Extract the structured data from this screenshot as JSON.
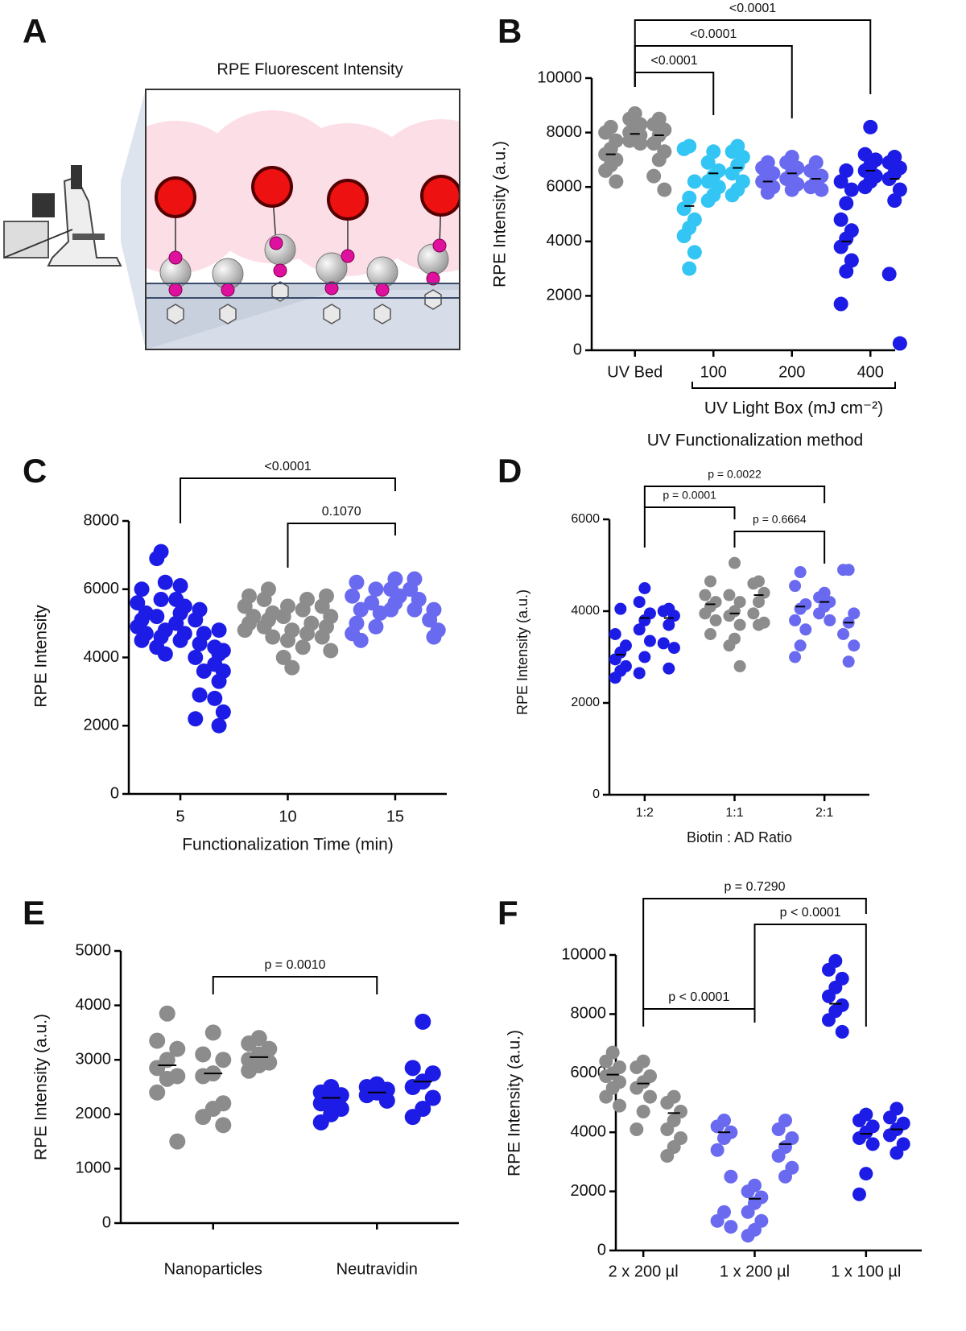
{
  "panel_a": {
    "panel": "A",
    "title": "RPE Fluorescent Intensity"
  },
  "chart_data": [
    {
      "type": "dotplot",
      "panel": "B",
      "ylabel": "RPE Intensity (a.u.)",
      "ylim": [
        0,
        10000
      ],
      "yticks": [
        0,
        2000,
        4000,
        6000,
        8000,
        10000
      ],
      "categories": [
        "UV Bed",
        "100",
        "200",
        "400"
      ],
      "x_group_label": "UV Light Box (mJ cm⁻²)",
      "xlabel": "UV Functionalization method",
      "groups": [
        {
          "color": "#8c8c8c",
          "columns": [
            {
              "values": [
                8200,
                8000,
                7700,
                7400,
                7200,
                7000,
                6800,
                6600,
                6200
              ],
              "mean": 7200
            },
            {
              "values": [
                8700,
                8500,
                8300,
                8100,
                8000,
                7900,
                7800,
                7700,
                7600
              ],
              "mean": 7950
            },
            {
              "values": [
                8500,
                8300,
                8100,
                7900,
                7600,
                7300,
                7000,
                6400,
                5900
              ],
              "mean": 7900
            }
          ]
        },
        {
          "color": "#33c5f3",
          "columns": [
            {
              "values": [
                7500,
                7400,
                6200,
                5600,
                5200,
                4800,
                4500,
                4200,
                3600,
                3000
              ],
              "mean": 5300
            },
            {
              "values": [
                7300,
                6900,
                6600,
                6400,
                6200,
                6000,
                5700,
                5500
              ],
              "mean": 6500
            },
            {
              "values": [
                7500,
                7300,
                7100,
                6800,
                6500,
                6200,
                5900,
                5700
              ],
              "mean": 6700
            }
          ]
        },
        {
          "color": "#6a6af0",
          "columns": [
            {
              "values": [
                6900,
                6700,
                6500,
                6300,
                6200,
                6000,
                5800
              ],
              "mean": 6200
            },
            {
              "values": [
                7100,
                6900,
                6700,
                6500,
                6300,
                6100,
                5900
              ],
              "mean": 6500
            },
            {
              "values": [
                6900,
                6600,
                6400,
                6200,
                6000,
                5900
              ],
              "mean": 6300
            }
          ]
        },
        {
          "color": "#1c1ce6",
          "columns": [
            {
              "values": [
                6600,
                6200,
                5900,
                5400,
                4800,
                4400,
                4100,
                3800,
                3300,
                2900,
                1700
              ],
              "mean": 4000
            },
            {
              "values": [
                8200,
                7200,
                7000,
                6800,
                6600,
                6400,
                6200,
                6000
              ],
              "mean": 6600
            },
            {
              "values": [
                7100,
                6900,
                6700,
                6500,
                6300,
                5900,
                5500,
                2800,
                250
              ],
              "mean": 6300
            }
          ]
        }
      ],
      "comparisons": [
        {
          "from": 0,
          "to": 1,
          "label": "<0.0001"
        },
        {
          "from": 0,
          "to": 2,
          "label": "<0.0001"
        },
        {
          "from": 0,
          "to": 3,
          "label": "<0.0001"
        }
      ]
    },
    {
      "type": "dotplot",
      "panel": "C",
      "ylabel": "RPE Intensity",
      "xlabel": "Functionalization Time (min)",
      "ylim": [
        0,
        8000
      ],
      "yticks": [
        0,
        2000,
        4000,
        6000,
        8000
      ],
      "x": [
        5,
        10,
        15
      ],
      "xlim": [
        2.6,
        17.4
      ],
      "xticks": [
        5,
        10,
        15
      ],
      "groups": [
        {
          "color": "#1c1ce6",
          "columns": [
            {
              "values": [
                6000,
                5600,
                5300,
                5100,
                4900,
                4700,
                4500
              ]
            },
            {
              "values": [
                7100,
                6900,
                6200,
                5700,
                5200,
                4800,
                4600,
                4300,
                4100
              ]
            },
            {
              "values": [
                6100,
                5700,
                5500,
                5300,
                5000,
                4700,
                4500
              ]
            },
            {
              "values": [
                5400,
                5100,
                4700,
                4400,
                4000,
                3600,
                2900,
                2200
              ]
            },
            {
              "values": [
                4800,
                4300,
                4200,
                4100,
                3800,
                3600,
                3300,
                2800,
                2400,
                2000
              ]
            }
          ]
        },
        {
          "color": "#8c8c8c",
          "columns": [
            {
              "values": [
                5800,
                5500,
                5200,
                5000,
                4800
              ]
            },
            {
              "values": [
                6000,
                5700,
                5300,
                5100,
                4900,
                4600
              ]
            },
            {
              "values": [
                5500,
                5200,
                4800,
                4500,
                4000,
                3700
              ]
            },
            {
              "values": [
                5700,
                5400,
                5000,
                4700,
                4300
              ]
            },
            {
              "values": [
                5800,
                5500,
                5200,
                4900,
                4600,
                4200
              ]
            }
          ]
        },
        {
          "color": "#6a6af0",
          "columns": [
            {
              "values": [
                6200,
                5800,
                5400,
                5000,
                4700,
                4500
              ]
            },
            {
              "values": [
                6000,
                5600,
                5300,
                4900
              ]
            },
            {
              "values": [
                6300,
                6000,
                5800,
                5600,
                5400
              ]
            },
            {
              "values": [
                6300,
                6000,
                5700,
                5400
              ]
            },
            {
              "values": [
                5400,
                5100,
                4800,
                4600
              ]
            }
          ]
        }
      ],
      "comparisons": [
        {
          "from": 0,
          "to": 2,
          "label": "<0.0001"
        },
        {
          "from": 1,
          "to": 2,
          "label": "0.1070"
        }
      ]
    },
    {
      "type": "dotplot",
      "panel": "D",
      "ylabel": "RPE Intensity (a.u.)",
      "xlabel": "Biotin : AD Ratio",
      "ylim": [
        0,
        6000
      ],
      "yticks": [
        0,
        2000,
        4000,
        6000
      ],
      "categories": [
        "1:2",
        "1:1",
        "2:1"
      ],
      "groups": [
        {
          "color": "#1c1ce6",
          "columns": [
            {
              "values": [
                4050,
                3500,
                3250,
                3100,
                2950,
                2800,
                2700,
                2550
              ],
              "mean": 3050
            },
            {
              "values": [
                4500,
                4200,
                3950,
                3800,
                3600,
                3350,
                3000,
                2650
              ],
              "mean": 3850
            },
            {
              "values": [
                4050,
                4000,
                3900,
                3700,
                3300,
                3200,
                2750
              ],
              "mean": 3850
            }
          ]
        },
        {
          "color": "#8c8c8c",
          "columns": [
            {
              "values": [
                4650,
                4350,
                4200,
                4100,
                3950,
                3800,
                3500
              ],
              "mean": 4150
            },
            {
              "values": [
                5050,
                4350,
                4200,
                4000,
                3900,
                3700,
                3400,
                3250,
                2800
              ],
              "mean": 3950
            },
            {
              "values": [
                4650,
                4600,
                4400,
                4200,
                3950,
                3750,
                3700
              ],
              "mean": 4350
            }
          ]
        },
        {
          "color": "#6a6af0",
          "columns": [
            {
              "values": [
                4850,
                4550,
                4150,
                4050,
                3800,
                3600,
                3250,
                3000
              ],
              "mean": 4100
            },
            {
              "values": [
                4400,
                4300,
                4200,
                4100,
                3950,
                3800
              ],
              "mean": 4200
            },
            {
              "values": [
                4900,
                4900,
                3950,
                3750,
                3500,
                3250,
                2900
              ],
              "mean": 3750
            }
          ]
        }
      ],
      "comparisons": [
        {
          "from": 0,
          "to": 1,
          "label": "p = 0.0001"
        },
        {
          "from": 0,
          "to": 2,
          "label": "p = 0.0022"
        },
        {
          "from": 1,
          "to": 2,
          "label": "p = 0.6664"
        }
      ]
    },
    {
      "type": "dotplot",
      "panel": "E",
      "ylabel": "RPE Intensity (a.u.)",
      "ylim": [
        0,
        5000
      ],
      "yticks": [
        0,
        1000,
        2000,
        3000,
        4000,
        5000
      ],
      "categories": [
        "Nanoparticles",
        "Neutravidin"
      ],
      "groups": [
        {
          "color": "#8c8c8c",
          "columns": [
            {
              "values": [
                3850,
                3350,
                3200,
                3000,
                2850,
                2700,
                2650,
                2400,
                1500
              ],
              "mean": 2900
            },
            {
              "values": [
                3500,
                3100,
                3000,
                2750,
                2700,
                2200,
                2100,
                1950,
                1800
              ],
              "mean": 2750
            },
            {
              "values": [
                3400,
                3300,
                3200,
                3100,
                3000,
                2950,
                2900,
                2800
              ],
              "mean": 3050
            }
          ]
        },
        {
          "color": "#1c1ce6",
          "columns": [
            {
              "values": [
                2500,
                2400,
                2350,
                2250,
                2200,
                2100,
                2000,
                1850
              ],
              "mean": 2300
            },
            {
              "values": [
                2550,
                2500,
                2450,
                2400,
                2350,
                2250
              ],
              "mean": 2400
            },
            {
              "values": [
                3700,
                2850,
                2750,
                2600,
                2500,
                2300,
                2100,
                1950
              ],
              "mean": 2600
            }
          ]
        }
      ],
      "comparisons": [
        {
          "from": 0,
          "to": 1,
          "label": "p = 0.0010"
        }
      ]
    },
    {
      "type": "dotplot",
      "panel": "F",
      "ylabel": "RPE Intensity (a.u.)",
      "ylim": [
        0,
        10000
      ],
      "yticks": [
        0,
        2000,
        4000,
        6000,
        8000,
        10000
      ],
      "categories": [
        "2 x 200 µl",
        "1 x 200 µl",
        "1 x 100 µl"
      ],
      "groups": [
        {
          "color": "#8c8c8c",
          "columns": [
            {
              "values": [
                6700,
                6400,
                6200,
                6000,
                5900,
                5700,
                5500,
                5200,
                4900
              ],
              "mean": 5950
            },
            {
              "values": [
                6400,
                6200,
                5900,
                5700,
                5500,
                5200,
                4700,
                4100
              ],
              "mean": 5650
            },
            {
              "values": [
                5200,
                5000,
                4700,
                4400,
                4100,
                3800,
                3500,
                3200
              ],
              "mean": 4650
            }
          ]
        },
        {
          "color": "#6a6af0",
          "columns": [
            {
              "values": [
                4400,
                4200,
                4000,
                3800,
                3400,
                2500,
                1300,
                1000,
                800
              ],
              "mean": 4000
            },
            {
              "values": [
                2200,
                2000,
                1800,
                1600,
                1300,
                1000,
                700,
                500
              ],
              "mean": 1750
            },
            {
              "values": [
                4400,
                4100,
                3800,
                3500,
                3200,
                2800,
                2500
              ],
              "mean": 3600
            }
          ]
        },
        {
          "color": "#1c1ce6",
          "columns": [
            {
              "values": [
                9800,
                9500,
                9200,
                8900,
                8600,
                8300,
                8100,
                7800,
                7400
              ],
              "mean": 8350
            },
            {
              "values": [
                4600,
                4400,
                4200,
                4000,
                3800,
                3600,
                2600,
                1900
              ],
              "mean": 3950
            },
            {
              "values": [
                4800,
                4500,
                4300,
                4100,
                3900,
                3600,
                3300
              ],
              "mean": 4100
            }
          ]
        }
      ],
      "comparisons": [
        {
          "from": 0,
          "to": 1,
          "label": "p < 0.0001"
        },
        {
          "from": 0,
          "to": 2,
          "label": "p = 0.7290"
        },
        {
          "from": 1,
          "to": 2,
          "label": "p < 0.0001"
        }
      ]
    }
  ]
}
